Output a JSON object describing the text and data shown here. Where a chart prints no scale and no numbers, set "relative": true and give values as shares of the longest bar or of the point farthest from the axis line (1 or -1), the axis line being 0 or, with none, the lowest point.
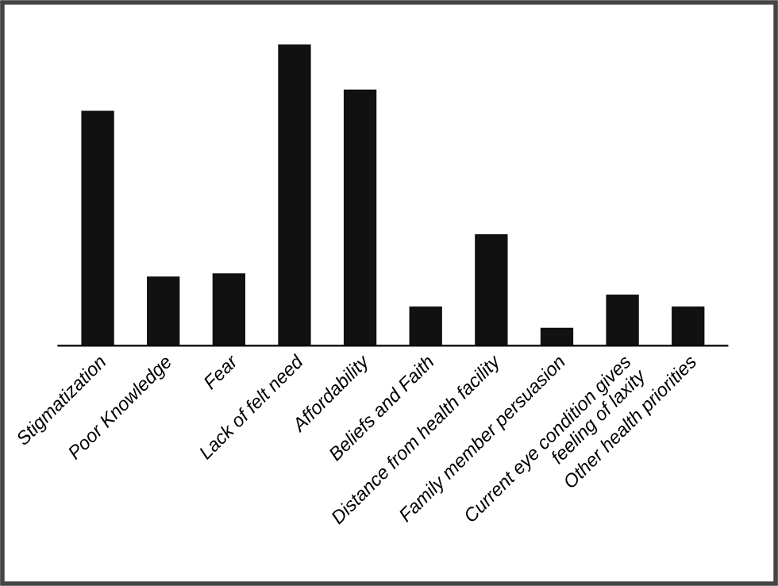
{
  "chart_data": {
    "type": "bar",
    "relative": true,
    "categories": [
      "Stigmatization",
      "Poor Knowledge",
      "Fear",
      "Lack of felt need",
      "Affordability",
      "Beliefs and Faith",
      "Distance from health facility",
      "Family member persuasion",
      "Current eye condition gives\nfeeling of laxity",
      "Other health priorities"
    ],
    "values": [
      0.78,
      0.23,
      0.24,
      1,
      0.85,
      0.13,
      0.37,
      0.06,
      0.17,
      0.13
    ],
    "color": "#111111"
  }
}
